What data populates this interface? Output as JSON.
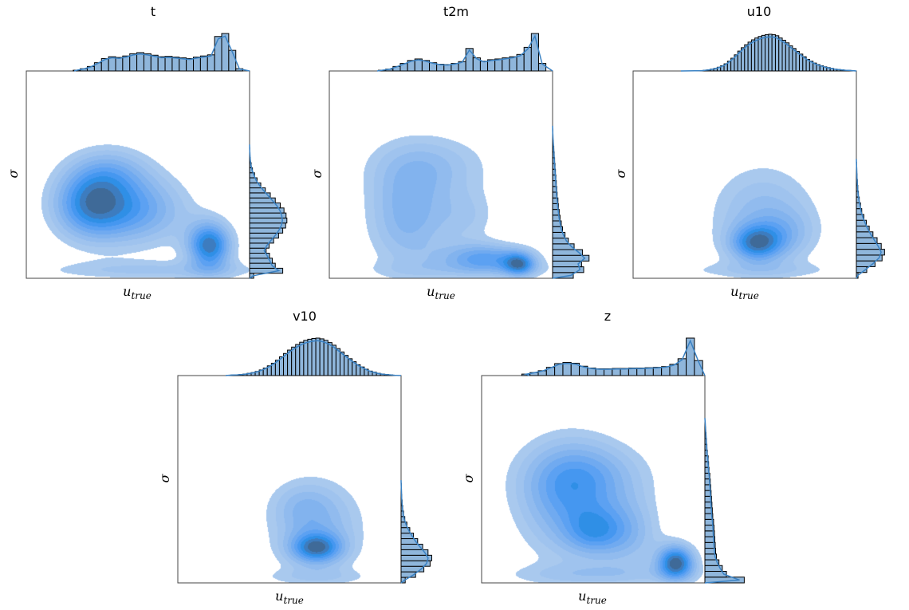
{
  "colors": {
    "kde_levels": [
      "#a9c9ee",
      "#9fc3ee",
      "#91bbee",
      "#82b3ee",
      "#70aaf0",
      "#5ca1f2",
      "#4597f0",
      "#2f8fe6",
      "#3d7cbf",
      "#3f6a98"
    ],
    "hist_fill": "#8fb6db",
    "hist_edge": "#000000",
    "kde_line": "#3a82c4",
    "frame": "#000000"
  },
  "chart_data": [
    {
      "type": "joint-kde",
      "title": "t",
      "xlabel": "u",
      "xlabel_sub": "true",
      "ylabel": "σ",
      "x_range": [
        0,
        1
      ],
      "y_range": [
        0,
        1
      ],
      "grid": false,
      "kde_blobs": [
        {
          "x": 0.58,
          "y": 0.04,
          "sx": 0.42,
          "sy": 0.035,
          "w": 0.35
        },
        {
          "x": 0.28,
          "y": 0.36,
          "sx": 0.12,
          "sy": 0.12,
          "w": 1.0
        },
        {
          "x": 0.5,
          "y": 0.33,
          "sx": 0.16,
          "sy": 0.12,
          "w": 0.75
        },
        {
          "x": 0.82,
          "y": 0.16,
          "sx": 0.07,
          "sy": 0.08,
          "w": 1.25
        },
        {
          "x": 0.38,
          "y": 0.52,
          "sx": 0.13,
          "sy": 0.09,
          "w": 0.45
        }
      ],
      "marginal_x": [
        0.02,
        0.06,
        0.12,
        0.22,
        0.33,
        0.38,
        0.36,
        0.4,
        0.46,
        0.49,
        0.46,
        0.42,
        0.38,
        0.39,
        0.37,
        0.35,
        0.33,
        0.37,
        0.4,
        0.43,
        0.92,
        1.0,
        0.55,
        0.06
      ],
      "marginal_x_range": [
        0.21,
        0.97
      ],
      "marginal_y": [
        0.1,
        0.8,
        0.62,
        0.55,
        0.48,
        0.4,
        0.47,
        0.58,
        0.7,
        0.8,
        0.87,
        0.9,
        0.88,
        0.83,
        0.74,
        0.62,
        0.5,
        0.38,
        0.27,
        0.18,
        0.12,
        0.07,
        0.04,
        0.02,
        0.01,
        0.005
      ],
      "marginal_y_range": [
        0.0,
        0.63
      ]
    },
    {
      "type": "joint-kde",
      "title": "t2m",
      "xlabel": "u",
      "xlabel_sub": "true",
      "ylabel": "σ",
      "x_range": [
        0,
        1
      ],
      "y_range": [
        0,
        1
      ],
      "grid": false,
      "kde_blobs": [
        {
          "x": 0.62,
          "y": 0.04,
          "sx": 0.36,
          "sy": 0.035,
          "w": 0.3
        },
        {
          "x": 0.35,
          "y": 0.3,
          "sx": 0.13,
          "sy": 0.18,
          "w": 0.85
        },
        {
          "x": 0.45,
          "y": 0.55,
          "sx": 0.2,
          "sy": 0.11,
          "w": 0.55
        },
        {
          "x": 0.7,
          "y": 0.1,
          "sx": 0.14,
          "sy": 0.05,
          "w": 1.1
        },
        {
          "x": 0.85,
          "y": 0.07,
          "sx": 0.05,
          "sy": 0.04,
          "w": 1.2
        },
        {
          "x": 0.62,
          "y": 0.3,
          "sx": 0.1,
          "sy": 0.1,
          "w": 0.4
        }
      ],
      "marginal_x": [
        0.02,
        0.05,
        0.12,
        0.2,
        0.28,
        0.32,
        0.28,
        0.22,
        0.18,
        0.17,
        0.2,
        0.25,
        0.6,
        0.35,
        0.26,
        0.3,
        0.32,
        0.35,
        0.38,
        0.44,
        0.63,
        1.0,
        0.2
      ],
      "marginal_x_range": [
        0.22,
        0.97
      ],
      "marginal_y": [
        0.5,
        0.75,
        0.7,
        0.88,
        0.72,
        0.52,
        0.38,
        0.3,
        0.24,
        0.21,
        0.18,
        0.16,
        0.14,
        0.13,
        0.11,
        0.1,
        0.09,
        0.08,
        0.07,
        0.06,
        0.05,
        0.04,
        0.03,
        0.02,
        0.01,
        0.005
      ],
      "marginal_y_range": [
        0.0,
        0.72
      ]
    },
    {
      "type": "joint-kde",
      "title": "u10",
      "xlabel": "u",
      "xlabel_sub": "true",
      "ylabel": "σ",
      "x_range": [
        0,
        1
      ],
      "y_range": [
        0,
        1
      ],
      "grid": false,
      "kde_blobs": [
        {
          "x": 0.55,
          "y": 0.04,
          "sx": 0.38,
          "sy": 0.03,
          "w": 0.3
        },
        {
          "x": 0.58,
          "y": 0.3,
          "sx": 0.17,
          "sy": 0.18,
          "w": 0.75
        },
        {
          "x": 0.55,
          "y": 0.17,
          "sx": 0.08,
          "sy": 0.06,
          "w": 1.3
        },
        {
          "x": 0.68,
          "y": 0.22,
          "sx": 0.1,
          "sy": 0.08,
          "w": 0.4
        }
      ],
      "marginal_x": [
        0.01,
        0.02,
        0.03,
        0.05,
        0.07,
        0.1,
        0.14,
        0.19,
        0.26,
        0.34,
        0.43,
        0.53,
        0.62,
        0.7,
        0.77,
        0.83,
        0.88,
        0.92,
        0.95,
        0.97,
        0.98,
        0.97,
        0.94,
        0.88,
        0.82,
        0.75,
        0.67,
        0.6,
        0.52,
        0.45,
        0.38,
        0.31,
        0.26,
        0.21,
        0.17,
        0.14,
        0.11,
        0.09,
        0.07,
        0.05,
        0.04,
        0.03,
        0.02,
        0.015,
        0.01
      ],
      "marginal_x_range": [
        0.3,
        0.99
      ],
      "marginal_y": [
        0.04,
        0.25,
        0.45,
        0.62,
        0.68,
        0.6,
        0.5,
        0.4,
        0.31,
        0.24,
        0.18,
        0.13,
        0.1,
        0.07,
        0.05,
        0.035,
        0.025,
        0.015,
        0.01,
        0.005
      ],
      "marginal_y_range": [
        0.0,
        0.56
      ]
    },
    {
      "type": "joint-kde",
      "title": "v10",
      "xlabel": "u",
      "xlabel_sub": "true",
      "ylabel": "σ",
      "x_range": [
        0,
        1
      ],
      "y_range": [
        0,
        1
      ],
      "grid": false,
      "kde_blobs": [
        {
          "x": 0.62,
          "y": 0.03,
          "sx": 0.22,
          "sy": 0.03,
          "w": 0.3
        },
        {
          "x": 0.62,
          "y": 0.27,
          "sx": 0.15,
          "sy": 0.16,
          "w": 0.8
        },
        {
          "x": 0.62,
          "y": 0.17,
          "sx": 0.08,
          "sy": 0.05,
          "w": 1.3
        },
        {
          "x": 0.55,
          "y": 0.38,
          "sx": 0.1,
          "sy": 0.08,
          "w": 0.3
        }
      ],
      "marginal_x": [
        0.01,
        0.015,
        0.02,
        0.03,
        0.04,
        0.06,
        0.08,
        0.11,
        0.15,
        0.2,
        0.26,
        0.33,
        0.41,
        0.5,
        0.59,
        0.68,
        0.76,
        0.83,
        0.89,
        0.94,
        0.97,
        0.99,
        1.0,
        0.98,
        0.94,
        0.88,
        0.81,
        0.72,
        0.63,
        0.54,
        0.45,
        0.37,
        0.29,
        0.23,
        0.17,
        0.12,
        0.09,
        0.06,
        0.04,
        0.03,
        0.02,
        0.01
      ],
      "marginal_x_range": [
        0.22,
        0.98
      ],
      "marginal_y": [
        0.1,
        0.35,
        0.55,
        0.7,
        0.74,
        0.65,
        0.52,
        0.4,
        0.3,
        0.21,
        0.14,
        0.09,
        0.06,
        0.04,
        0.025,
        0.015,
        0.01,
        0.005
      ],
      "marginal_y_range": [
        0.0,
        0.48
      ]
    },
    {
      "type": "joint-kde",
      "title": "z",
      "xlabel": "u",
      "xlabel_sub": "true",
      "ylabel": "σ",
      "x_range": [
        0,
        1
      ],
      "y_range": [
        0,
        1
      ],
      "grid": false,
      "kde_blobs": [
        {
          "x": 0.5,
          "y": 0.04,
          "sx": 0.32,
          "sy": 0.04,
          "w": 0.3
        },
        {
          "x": 0.38,
          "y": 0.4,
          "sx": 0.16,
          "sy": 0.2,
          "w": 0.65
        },
        {
          "x": 0.48,
          "y": 0.52,
          "sx": 0.2,
          "sy": 0.12,
          "w": 0.45
        },
        {
          "x": 0.5,
          "y": 0.25,
          "sx": 0.09,
          "sy": 0.08,
          "w": 0.55
        },
        {
          "x": 0.66,
          "y": 0.24,
          "sx": 0.1,
          "sy": 0.12,
          "w": 0.45
        },
        {
          "x": 0.87,
          "y": 0.1,
          "sx": 0.06,
          "sy": 0.06,
          "w": 1.25
        }
      ],
      "marginal_x": [
        0.04,
        0.08,
        0.13,
        0.22,
        0.32,
        0.35,
        0.33,
        0.25,
        0.2,
        0.18,
        0.18,
        0.19,
        0.19,
        0.2,
        0.2,
        0.21,
        0.22,
        0.24,
        0.3,
        0.45,
        1.0,
        0.4
      ],
      "marginal_x_range": [
        0.18,
        0.99
      ],
      "marginal_y": [
        0.95,
        0.52,
        0.42,
        0.34,
        0.28,
        0.26,
        0.25,
        0.24,
        0.23,
        0.22,
        0.21,
        0.19,
        0.18,
        0.17,
        0.16,
        0.15,
        0.14,
        0.13,
        0.12,
        0.1,
        0.09,
        0.08,
        0.06,
        0.05,
        0.04,
        0.03,
        0.02,
        0.01
      ],
      "marginal_y_range": [
        0.0,
        0.78
      ]
    }
  ]
}
